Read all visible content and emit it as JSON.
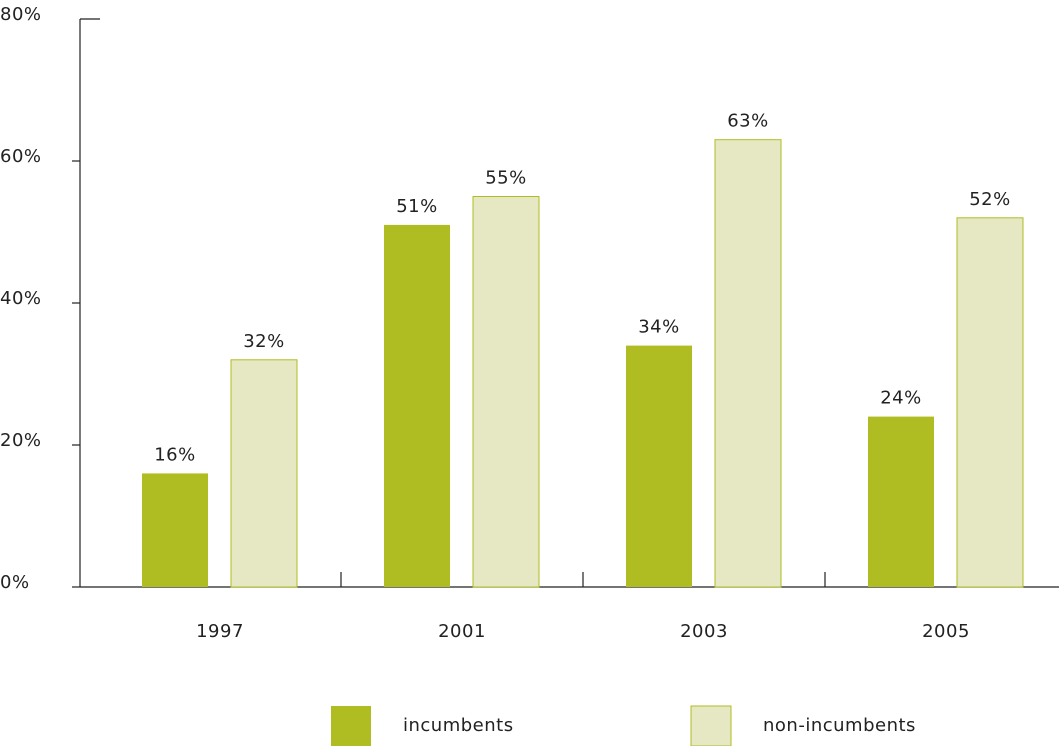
{
  "chart_data": {
    "type": "bar",
    "categories": [
      "1997",
      "2001",
      "2003",
      "2005"
    ],
    "series": [
      {
        "name": "incumbents",
        "color": "#afbd22",
        "values": [
          16,
          51,
          34,
          24
        ],
        "value_labels": [
          "16%",
          "51%",
          "34%",
          "24%"
        ]
      },
      {
        "name": "non-incumbents",
        "color": "#e6e8c4",
        "values": [
          32,
          55,
          63,
          52
        ],
        "value_labels": [
          "32%",
          "55%",
          "63%",
          "52%"
        ]
      }
    ],
    "ylim": [
      0,
      80
    ],
    "yticks": [
      {
        "value": 0,
        "label": "0%"
      },
      {
        "value": 20,
        "label": "20%"
      },
      {
        "value": 40,
        "label": "40%"
      },
      {
        "value": 60,
        "label": "60%"
      },
      {
        "value": 80,
        "label": "80%"
      }
    ],
    "grid": false,
    "legend": "bottom"
  }
}
